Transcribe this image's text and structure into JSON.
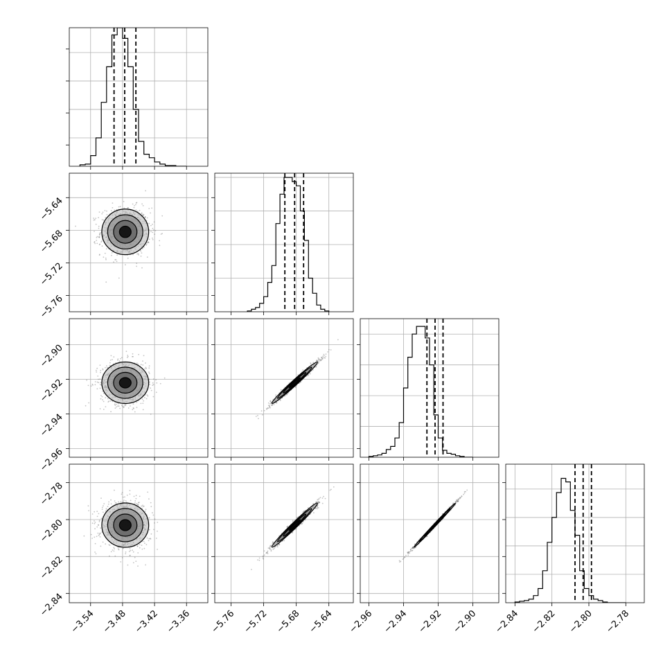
{
  "chart_data": {
    "type": "corner",
    "n_params": 4,
    "parameters": [
      {
        "index": 0,
        "mean": -3.475,
        "sd": 0.022,
        "range": [
          -3.58,
          -3.32
        ],
        "ticks": [
          -3.54,
          -3.48,
          -3.42,
          -3.36
        ],
        "tick_labels": [
          "−3.54",
          "−3.48",
          "−3.42",
          "−3.36"
        ],
        "quantiles": [
          -3.496,
          -3.476,
          -3.455
        ],
        "hist": {
          "edges": [
            -3.56,
            -3.55,
            -3.54,
            -3.53,
            -3.52,
            -3.51,
            -3.5,
            -3.49,
            -3.48,
            -3.47,
            -3.46,
            -3.45,
            -3.44,
            -3.43,
            -3.42,
            -3.41,
            -3.4,
            -3.39,
            -3.38,
            -3.37,
            -3.36
          ],
          "counts": [
            2,
            3,
            15,
            40,
            90,
            140,
            185,
            195,
            180,
            140,
            80,
            35,
            17,
            12,
            6,
            3,
            1,
            1,
            0,
            0
          ],
          "ymax": 195,
          "yticks": [
            40,
            80,
            120,
            160
          ]
        }
      },
      {
        "index": 1,
        "mean": -5.682,
        "sd": 0.014,
        "range": [
          -5.78,
          -5.61
        ],
        "ticks": [
          -5.76,
          -5.72,
          -5.68,
          -5.64
        ],
        "tick_labels": [
          "−5.76",
          "−5.72",
          "−5.68",
          "−5.64"
        ],
        "quantiles": [
          -5.694,
          -5.682,
          -5.671
        ],
        "hist": {
          "edges": [
            -5.74,
            -5.735,
            -5.73,
            -5.725,
            -5.72,
            -5.715,
            -5.71,
            -5.705,
            -5.7,
            -5.695,
            -5.69,
            -5.685,
            -5.68,
            -5.675,
            -5.67,
            -5.665,
            -5.66,
            -5.655,
            -5.65,
            -5.645,
            -5.64
          ],
          "counts": [
            1,
            3,
            5,
            10,
            18,
            35,
            55,
            105,
            140,
            160,
            160,
            155,
            150,
            120,
            85,
            40,
            22,
            8,
            3,
            1
          ],
          "ymax": 165,
          "yticks": [
            40,
            80,
            120,
            160
          ]
        }
      },
      {
        "index": 2,
        "mean": -2.922,
        "sd": 0.006,
        "range": [
          -2.965,
          -2.885
        ],
        "ticks": [
          -2.96,
          -2.94,
          -2.92,
          -2.9
        ],
        "tick_labels": [
          "−2.96",
          "−2.94",
          "−2.92",
          "−2.90"
        ],
        "quantiles": [
          -2.9265,
          -2.9218,
          -2.9172
        ],
        "hist": {
          "edges": [
            -2.96,
            -2.9575,
            -2.955,
            -2.9525,
            -2.95,
            -2.9475,
            -2.945,
            -2.9425,
            -2.94,
            -2.9375,
            -2.935,
            -2.9325,
            -2.93,
            -2.9275,
            -2.925,
            -2.9225,
            -2.92,
            -2.9175,
            -2.915,
            -2.9125,
            -2.91,
            -2.9075,
            -2.905,
            -2.9025,
            -2.9
          ],
          "counts": [
            1,
            2,
            3,
            5,
            10,
            14,
            25,
            45,
            90,
            130,
            160,
            170,
            170,
            155,
            120,
            55,
            25,
            9,
            5,
            4,
            2,
            1,
            0,
            0
          ],
          "ymax": 180,
          "yticks": [
            40,
            80,
            120,
            160
          ]
        }
      },
      {
        "index": 3,
        "mean": -2.803,
        "sd": 0.006,
        "range": [
          -2.845,
          -2.77
        ],
        "ticks": [
          -2.84,
          -2.82,
          -2.8,
          -2.78
        ],
        "tick_labels": [
          "−2.84",
          "−2.82",
          "−2.80",
          "−2.78"
        ],
        "quantiles": [
          -2.8075,
          -2.8031,
          -2.7986
        ],
        "hist": {
          "edges": [
            -2.84,
            -2.8375,
            -2.835,
            -2.8325,
            -2.83,
            -2.8275,
            -2.825,
            -2.8225,
            -2.82,
            -2.8175,
            -2.815,
            -2.8125,
            -2.81,
            -2.8075,
            -2.805,
            -2.8025,
            -2.8,
            -2.7975,
            -2.795,
            -2.7925,
            -2.79,
            -2.7875,
            -2.785,
            -2.7825,
            -2.78
          ],
          "counts": [
            1,
            2,
            3,
            5,
            10,
            20,
            45,
            85,
            120,
            155,
            175,
            170,
            130,
            95,
            45,
            20,
            10,
            5,
            3,
            1,
            0,
            0,
            0,
            0
          ],
          "ymax": 195,
          "yticks": [
            40,
            80,
            120,
            160
          ]
        }
      }
    ],
    "correlations": {
      "1-0": 0.0,
      "2-0": 0.0,
      "3-0": 0.0,
      "2-1": 0.985,
      "3-1": 0.985,
      "3-2": 0.997
    },
    "contour_levels_sigma": [
      0.5,
      1.0,
      1.5,
      2.0
    ],
    "n_scatter_points": 900,
    "grid": true,
    "colors": {
      "axes": "#000000",
      "grid": "#b0b0b0",
      "scatter": "#555555",
      "density_dark": "#111111",
      "density_mid": "#666666",
      "density_light": "#b5b5b5"
    }
  }
}
